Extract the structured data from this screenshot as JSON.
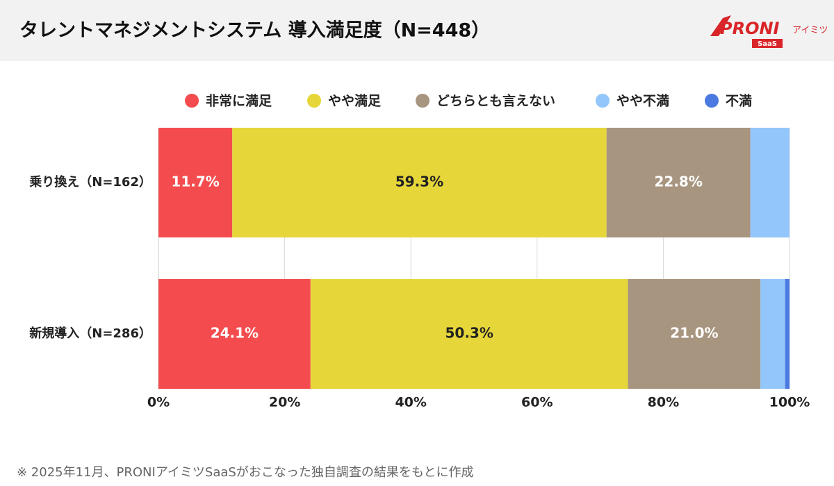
{
  "header": {
    "title": "タレントマネジメントシステム 導入満足度（N=448）",
    "logo": {
      "brand": "PRONI",
      "sub": "アイミツ",
      "tag": "SaaS"
    }
  },
  "chart_data": {
    "type": "stacked-bar-horizontal",
    "categories": [
      "乗り換え（N=162）",
      "新規導入（N=286）"
    ],
    "series": [
      {
        "name": "非常に満足",
        "color": "#f44c4e",
        "values": [
          11.7,
          24.1
        ],
        "value_labels": [
          "11.7%",
          "24.1%"
        ]
      },
      {
        "name": "やや満足",
        "color": "#e6d63a",
        "values": [
          59.3,
          50.3
        ],
        "value_labels": [
          "59.3%",
          "50.3%"
        ]
      },
      {
        "name": "どちらとも言えない",
        "color": "#a89580",
        "values": [
          22.8,
          21.0
        ],
        "value_labels": [
          "22.8%",
          "21.0%"
        ]
      },
      {
        "name": "やや不満",
        "color": "#93c6fb",
        "values": [
          6.2,
          3.9
        ]
      },
      {
        "name": "不満",
        "color": "#4a7ae0",
        "values": [
          0,
          0.7
        ]
      }
    ],
    "xlim": [
      0,
      100
    ],
    "xticks": [
      {
        "value": 0,
        "label": "0%"
      },
      {
        "value": 20,
        "label": "20%"
      },
      {
        "value": 40,
        "label": "40%"
      },
      {
        "value": 60,
        "label": "60%"
      },
      {
        "value": 80,
        "label": "80%"
      },
      {
        "value": 100,
        "label": "100%"
      }
    ],
    "grid": true,
    "legend": "top"
  },
  "footnote": "※ 2025年11月、PRONIアイミツSaaSがおこなった独自調査の結果をもとに作成"
}
